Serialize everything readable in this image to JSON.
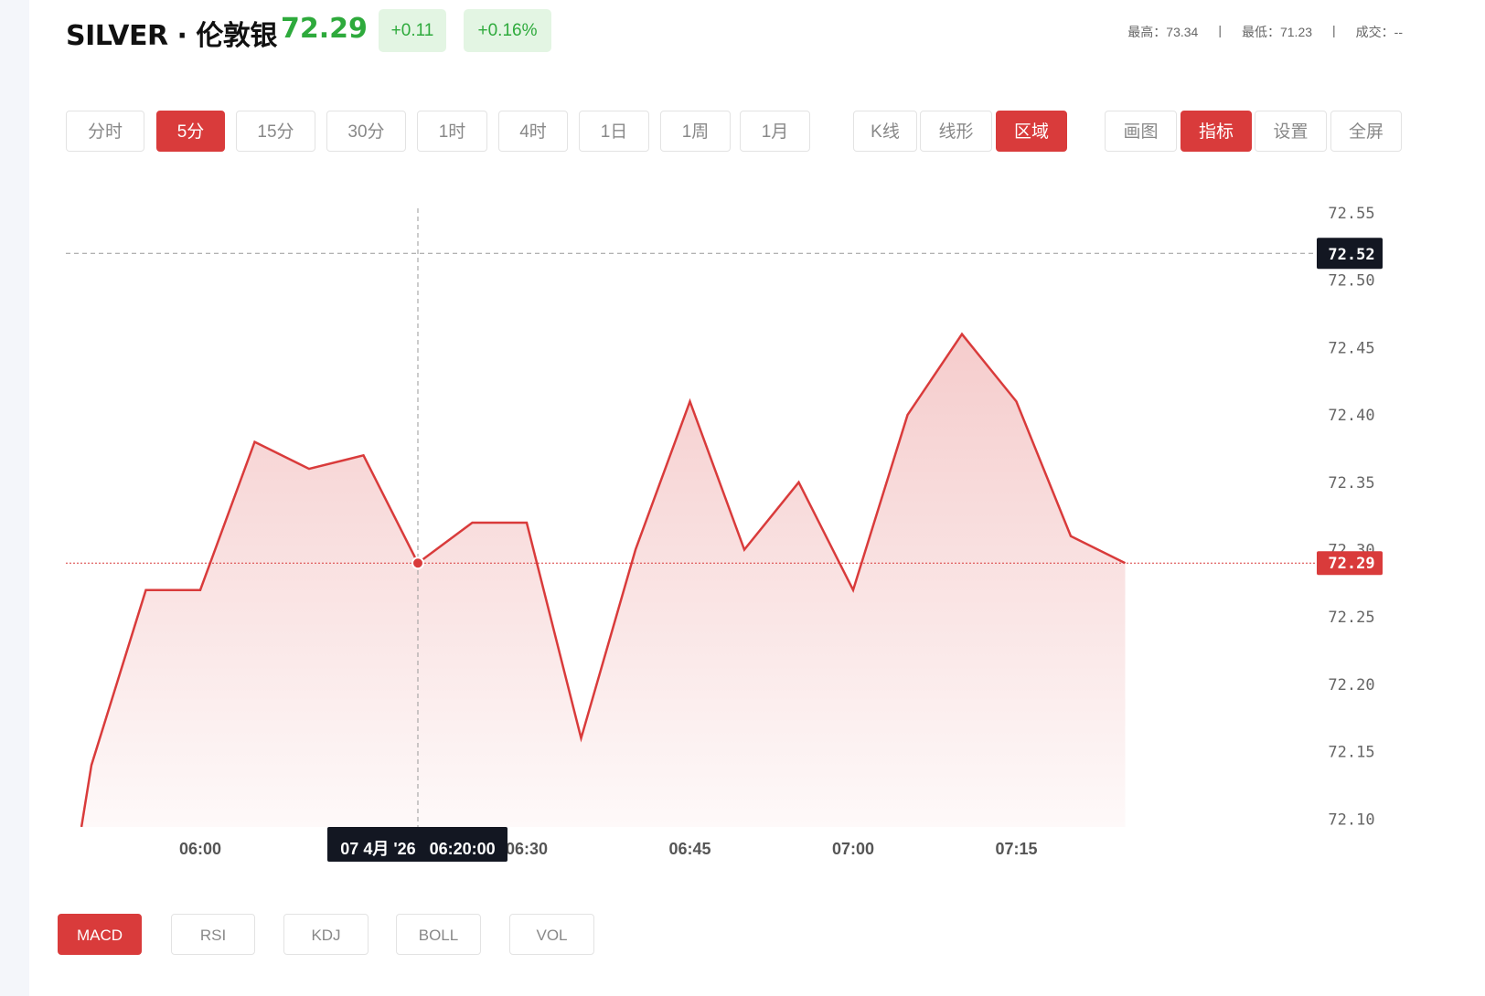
{
  "header": {
    "title": "SILVER · 伦敦银",
    "price": "72.29",
    "change": "+0.11",
    "change_pct": "+0.16%",
    "stats": {
      "high": "最高：73.34",
      "sep1": "|",
      "low": "最低：71.23",
      "sep2": "|",
      "volume": "成交：--"
    }
  },
  "colors": {
    "up": "#2eaa3c",
    "accent": "#d93b3b",
    "dark": "#131722"
  },
  "timeframes": [
    {
      "label": "分时",
      "active": false
    },
    {
      "label": "5分",
      "active": true
    },
    {
      "label": "15分",
      "active": false
    },
    {
      "label": "30分",
      "active": false
    },
    {
      "label": "1时",
      "active": false
    },
    {
      "label": "4时",
      "active": false
    },
    {
      "label": "1日",
      "active": false
    },
    {
      "label": "1周",
      "active": false
    },
    {
      "label": "1月",
      "active": false
    }
  ],
  "chart_types": [
    {
      "label": "K线",
      "active": false
    },
    {
      "label": "线形",
      "active": false
    },
    {
      "label": "区域",
      "active": true
    }
  ],
  "tools": [
    {
      "label": "画图",
      "active": false
    },
    {
      "label": "指标",
      "active": true
    },
    {
      "label": "设置",
      "active": false
    },
    {
      "label": "全屏",
      "active": false
    }
  ],
  "indicators": [
    {
      "label": "MACD",
      "active": true
    },
    {
      "label": "RSI",
      "active": false
    },
    {
      "label": "KDJ",
      "active": false
    },
    {
      "label": "BOLL",
      "active": false
    },
    {
      "label": "VOL",
      "active": false
    }
  ],
  "chart_data": {
    "type": "area",
    "x": [
      "05:45",
      "05:50",
      "05:55",
      "06:00",
      "06:05",
      "06:10",
      "06:15",
      "06:20",
      "06:25",
      "06:30",
      "06:35",
      "06:40",
      "06:45",
      "06:50",
      "06:55",
      "07:00",
      "07:05",
      "07:10",
      "07:15",
      "07:20",
      "07:25"
    ],
    "values": [
      71.89,
      72.14,
      72.27,
      72.27,
      72.38,
      72.36,
      72.37,
      72.29,
      72.32,
      72.32,
      72.16,
      72.3,
      72.41,
      72.3,
      72.35,
      72.27,
      72.4,
      72.46,
      72.41,
      72.31,
      72.29
    ],
    "ylim": [
      72.1,
      72.55
    ],
    "y_ticks": [
      "72.10",
      "72.15",
      "72.20",
      "72.25",
      "72.30",
      "72.35",
      "72.40",
      "72.45",
      "72.50",
      "72.55"
    ],
    "x_ticks": [
      "06:00",
      "06:30",
      "06:45",
      "07:00",
      "07:15"
    ],
    "last_price_label": "72.29",
    "crosshair": {
      "time": "06:20",
      "price_label": "72.52",
      "price": 72.52,
      "time_label": "07 4月 '26   06:20:00"
    },
    "line_color": "#d93b3b",
    "grid": false
  }
}
